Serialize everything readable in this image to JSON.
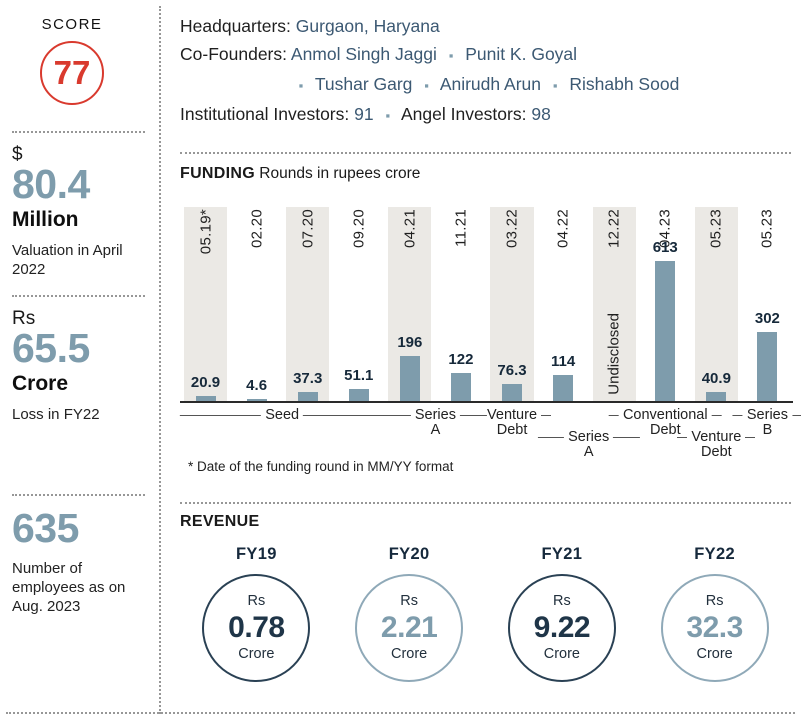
{
  "colors": {
    "accent_red": "#d93a2e",
    "steel_blue": "#7e9cac",
    "navy": "#3c5973",
    "dark_navy": "#1f3548",
    "stripe": "#ebe9e5"
  },
  "glyphs": {
    "bullet": "▪"
  },
  "sidebar": {
    "score_label": "SCORE",
    "score_value": "77",
    "stats": [
      {
        "prefix": "$",
        "value": "80.4",
        "unit": "Million",
        "desc": "Valuation in April 2022"
      },
      {
        "prefix": "Rs",
        "value": "65.5",
        "unit": "Crore",
        "desc": "Loss in FY22"
      },
      {
        "prefix": "",
        "value": "635",
        "unit": "",
        "desc": "Number of employees as on Aug. 2023"
      }
    ]
  },
  "info": {
    "hq_label": "Headquarters:",
    "hq_value": "Gurgaon, Haryana",
    "cofounders_label": "Co-Founders:",
    "cofounders": [
      "Anmol Singh Jaggi",
      "Punit K. Goyal",
      "Tushar Garg",
      "Anirudh Arun",
      "Rishabh Sood"
    ],
    "inst_label": "Institutional Investors:",
    "inst_value": "91",
    "angel_label": "Angel Investors:",
    "angel_value": "98"
  },
  "funding": {
    "heading": "FUNDING",
    "subheading": "Rounds in rupees crore"
  },
  "revenue": {
    "heading": "REVENUE",
    "items": [
      {
        "fy": "FY19",
        "currency": "Rs",
        "value": "0.78",
        "unit": "Crore",
        "tone": "dark"
      },
      {
        "fy": "FY20",
        "currency": "Rs",
        "value": "2.21",
        "unit": "Crore",
        "tone": "light"
      },
      {
        "fy": "FY21",
        "currency": "Rs",
        "value": "9.22",
        "unit": "Crore",
        "tone": "dark"
      },
      {
        "fy": "FY22",
        "currency": "Rs",
        "value": "32.3",
        "unit": "Crore",
        "tone": "light"
      }
    ]
  },
  "chart_data": {
    "type": "bar",
    "title": "FUNDING Rounds in rupees crore",
    "xlabel": "Funding round date (MM.YY)",
    "ylabel": "Rupees crore",
    "ylim": [
      0,
      650
    ],
    "x": [
      "05.19*",
      "02.20",
      "07.20",
      "09.20",
      "04.21",
      "11.21",
      "03.22",
      "04.22",
      "12.22",
      "04.23",
      "05.23",
      "05.23"
    ],
    "values": [
      20.9,
      4.6,
      37.3,
      51.1,
      196,
      122,
      76.3,
      114,
      null,
      613,
      40.9,
      302
    ],
    "labels": [
      "20.9",
      "4.6",
      "37.3",
      "51.1",
      "196",
      "122",
      "76.3",
      "114",
      "Undisclosed",
      "613",
      "40.9",
      "302"
    ],
    "striped_columns": [
      0,
      2,
      4,
      6,
      8,
      10
    ],
    "groups": [
      {
        "text": "Seed",
        "sub": "",
        "start": 0,
        "span": 4,
        "row": 0
      },
      {
        "text": "Series",
        "sub": "A",
        "start": 4,
        "span": 2,
        "row": 0
      },
      {
        "text": "Venture",
        "sub": "Debt",
        "start": 6,
        "span": 1,
        "row": 0
      },
      {
        "text": "Series",
        "sub": "A",
        "start": 7,
        "span": 2,
        "row": 1
      },
      {
        "text": "Conventional",
        "sub": "Debt",
        "start": 9,
        "span": 1,
        "row": 0
      },
      {
        "text": "Venture",
        "sub": "Debt",
        "start": 10,
        "span": 1,
        "row": 1
      },
      {
        "text": "Series",
        "sub": "B",
        "start": 11,
        "span": 1,
        "row": 0
      }
    ],
    "footnote": "* Date of the funding round in MM/YY format"
  }
}
